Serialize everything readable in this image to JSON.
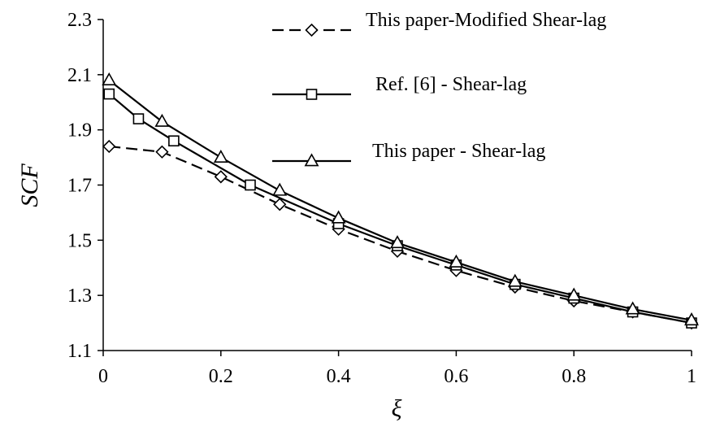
{
  "chart_data": {
    "type": "line",
    "xlabel": "ξ",
    "ylabel": "SCF",
    "xlim": [
      0,
      1
    ],
    "ylim": [
      1.1,
      2.3
    ],
    "xticks": [
      0,
      0.2,
      0.4,
      0.6,
      0.8,
      1
    ],
    "xtick_labels": [
      "0",
      "0.2",
      "0.4",
      "0.6",
      "0.8",
      "1"
    ],
    "yticks": [
      1.1,
      1.3,
      1.5,
      1.7,
      1.9,
      2.1,
      2.3
    ],
    "ytick_labels": [
      "1.1",
      "1.3",
      "1.5",
      "1.7",
      "1.9",
      "2.1",
      "2.3"
    ],
    "grid": false,
    "legend_position": "top-right",
    "series": [
      {
        "name": "This paper-Modified Shear-lag",
        "line_style": "dashed",
        "marker": "diamond",
        "x": [
          0.01,
          0.1,
          0.2,
          0.3,
          0.4,
          0.5,
          0.6,
          0.7,
          0.8,
          0.9,
          1.0
        ],
        "y": [
          1.84,
          1.82,
          1.73,
          1.63,
          1.54,
          1.46,
          1.39,
          1.33,
          1.28,
          1.24,
          1.2
        ]
      },
      {
        "name": "Ref. [6] - Shear-lag",
        "line_style": "solid",
        "marker": "square",
        "x": [
          0.01,
          0.06,
          0.12,
          0.25,
          0.4,
          0.5,
          0.6,
          0.7,
          0.8,
          0.9,
          1.0
        ],
        "y": [
          2.03,
          1.94,
          1.86,
          1.7,
          1.56,
          1.48,
          1.41,
          1.34,
          1.29,
          1.24,
          1.2
        ]
      },
      {
        "name": "This paper - Shear-lag",
        "line_style": "solid",
        "marker": "triangle",
        "x": [
          0.01,
          0.1,
          0.2,
          0.3,
          0.4,
          0.5,
          0.6,
          0.7,
          0.8,
          0.9,
          1.0
        ],
        "y": [
          2.08,
          1.93,
          1.8,
          1.68,
          1.58,
          1.49,
          1.42,
          1.35,
          1.3,
          1.25,
          1.21
        ]
      }
    ]
  }
}
